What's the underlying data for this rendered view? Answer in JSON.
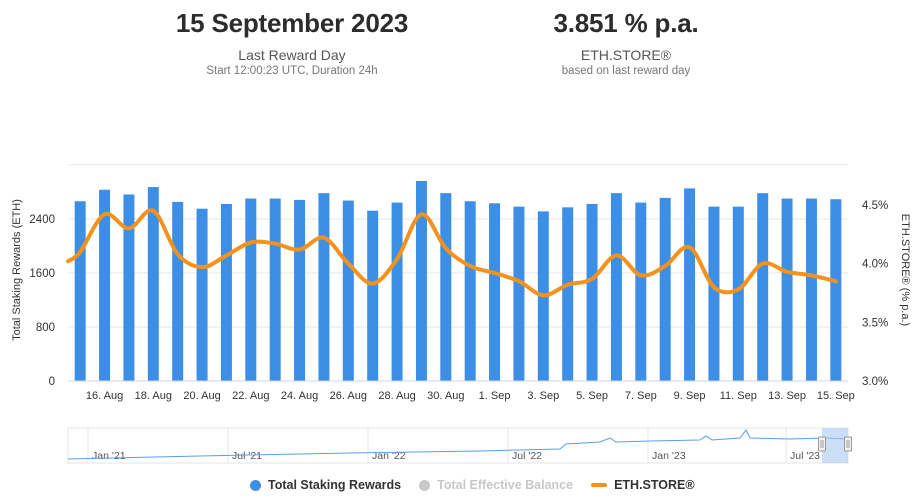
{
  "header": {
    "date": "15 September 2023",
    "date_sub": "Last Reward Day",
    "date_note": "Start 12:00:23 UTC, Duration 24h",
    "rate": "3.851 % p.a.",
    "rate_sub": "ETH.STORE®",
    "rate_note": "based on last reward day"
  },
  "colors": {
    "bars": "#3d8fe6",
    "line": "#f5921e",
    "inactive": "#c8c8c8",
    "navigator_fill": "#a7c8f0"
  },
  "legend": [
    {
      "label": "Total Staking Rewards",
      "color": "#3d8fe6",
      "shape": "dot",
      "active": true
    },
    {
      "label": "Total Effective Balance",
      "color": "#c8c8c8",
      "shape": "dot",
      "active": false
    },
    {
      "label": "ETH.STORE®",
      "color": "#f5921e",
      "shape": "line",
      "active": true
    }
  ],
  "chart_data": {
    "type": "bar",
    "title": "",
    "ylabel_left": "Total Staking Rewards (ETH)",
    "ylabel_right": "ETH.STORE® (% p.a.)",
    "ylim_left": [
      0,
      3300
    ],
    "ylim_right": [
      3.0,
      4.9
    ],
    "yticks_left": [
      "0",
      "800",
      "1600",
      "2400"
    ],
    "yticks_right": [
      "3.0%",
      "3.5%",
      "4.0%",
      "4.5%"
    ],
    "ytick_values_left": [
      0,
      800,
      1600,
      2400
    ],
    "ytick_values_right": [
      3.0,
      3.5,
      4.0,
      4.5
    ],
    "grid": true,
    "legend_position": "bottom",
    "x_labels": [
      "16. Aug",
      "18. Aug",
      "20. Aug",
      "22. Aug",
      "24. Aug",
      "26. Aug",
      "28. Aug",
      "30. Aug",
      "1. Sep",
      "3. Sep",
      "5. Sep",
      "7. Sep",
      "9. Sep",
      "11. Sep",
      "13. Sep",
      "15. Sep"
    ],
    "categories": [
      "15. Aug",
      "16. Aug",
      "17. Aug",
      "18. Aug",
      "19. Aug",
      "20. Aug",
      "21. Aug",
      "22. Aug",
      "23. Aug",
      "24. Aug",
      "25. Aug",
      "26. Aug",
      "27. Aug",
      "28. Aug",
      "29. Aug",
      "30. Aug",
      "31. Aug",
      "1. Sep",
      "2. Sep",
      "3. Sep",
      "4. Sep",
      "5. Sep",
      "6. Sep",
      "7. Sep",
      "8. Sep",
      "9. Sep",
      "10. Sep",
      "11. Sep",
      "12. Sep",
      "13. Sep",
      "14. Sep",
      "15. Sep"
    ],
    "series": [
      {
        "name": "Total Staking Rewards",
        "type": "bar",
        "axis": "left",
        "values": [
          2660,
          2830,
          2760,
          2870,
          2650,
          2550,
          2620,
          2700,
          2700,
          2680,
          2780,
          2670,
          2520,
          2640,
          2960,
          2780,
          2660,
          2630,
          2580,
          2510,
          2570,
          2620,
          2780,
          2640,
          2710,
          2850,
          2580,
          2580,
          2780,
          2700,
          2700,
          2690
        ]
      },
      {
        "name": "ETH.STORE®",
        "type": "line",
        "axis": "right",
        "values": [
          4.1,
          4.42,
          4.3,
          4.45,
          4.08,
          3.97,
          4.07,
          4.18,
          4.17,
          4.12,
          4.22,
          4.0,
          3.83,
          4.04,
          4.42,
          4.13,
          3.98,
          3.92,
          3.85,
          3.73,
          3.82,
          3.87,
          4.07,
          3.9,
          3.98,
          4.14,
          3.8,
          3.78,
          4.0,
          3.93,
          3.9,
          3.85
        ]
      }
    ],
    "navigator": {
      "x_labels": [
        "Jan '21",
        "Jul '21",
        "Jan '22",
        "Jul '22",
        "Jan '23",
        "Jul '23"
      ]
    }
  }
}
